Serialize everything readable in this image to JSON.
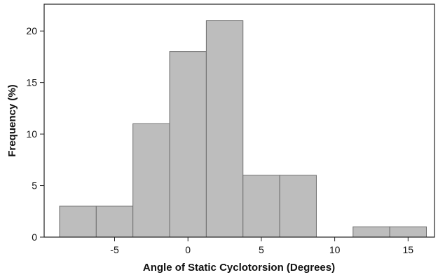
{
  "chart_data": {
    "type": "bar",
    "subtype": "histogram",
    "title": "",
    "xlabel": "Angle of Static Cyclotorsion (Degrees)",
    "ylabel": "Frequency (%)",
    "xlim": [
      -9.8,
      16.8
    ],
    "ylim": [
      0,
      22.6
    ],
    "xticks": [
      -5,
      0,
      5,
      10,
      15
    ],
    "xtick_labels": [
      "-5",
      "0",
      "5",
      "10",
      "15"
    ],
    "yticks": [
      0,
      5,
      10,
      15,
      20
    ],
    "ytick_labels": [
      "0",
      "5",
      "10",
      "15",
      "20"
    ],
    "grid": false,
    "bins": [
      {
        "x0": -8.75,
        "x1": -6.25,
        "value": 3
      },
      {
        "x0": -6.25,
        "x1": -3.75,
        "value": 3
      },
      {
        "x0": -3.75,
        "x1": -1.25,
        "value": 11
      },
      {
        "x0": -1.25,
        "x1": 1.25,
        "value": 18
      },
      {
        "x0": 1.25,
        "x1": 3.75,
        "value": 21
      },
      {
        "x0": 3.75,
        "x1": 6.25,
        "value": 6
      },
      {
        "x0": 6.25,
        "x1": 8.75,
        "value": 6
      },
      {
        "x0": 8.75,
        "x1": 11.25,
        "value": 0
      },
      {
        "x0": 11.25,
        "x1": 13.75,
        "value": 1
      },
      {
        "x0": 13.75,
        "x1": 16.25,
        "value": 1
      }
    ],
    "colors": {
      "bar_fill": "#bdbdbd",
      "bar_stroke": "#6e6e6e"
    }
  }
}
